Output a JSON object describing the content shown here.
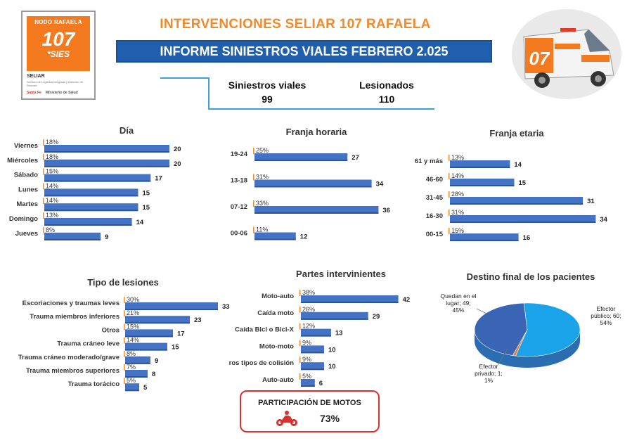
{
  "logo": {
    "nodo": "NODO RAFAELA",
    "number": "107",
    "sies": "*SIES",
    "seliar": "SELIAR",
    "tagline": "Servicio de Logística Integrada y Atención de Rescate",
    "santafe": "Santa Fe",
    "ministerio": "Ministerio de Salud"
  },
  "header": {
    "title": "INTERVENCIONES SELIAR 107 RAFAELA",
    "subtitle": "INFORME SINIESTROS VIALES FEBRERO 2.025"
  },
  "summary": {
    "siniestros_label": "Siniestros viales",
    "siniestros_value": "99",
    "lesionados_label": "Lesionados",
    "lesionados_value": "110"
  },
  "motos": {
    "label": "PARTICIPACIÓN DE MOTOS",
    "value": "73%"
  },
  "colors": {
    "bar": "#4472c4",
    "bar_dark": "#2f5597",
    "orange": "#f08a2c",
    "header_blue": "#1f5fad",
    "pie_blue_light": "#1aa3e8",
    "pie_blue_dark": "#3a64b4",
    "pie_orange": "#e07b39"
  },
  "chart_data": [
    {
      "id": "dia",
      "type": "bar",
      "orientation": "horizontal",
      "title": "Día",
      "categories": [
        "Viernes",
        "Miércoles",
        "Sábado",
        "Lunes",
        "Martes",
        "Domingo",
        "Jueves"
      ],
      "values": [
        20,
        20,
        17,
        15,
        15,
        14,
        9
      ],
      "percent_labels": [
        "18%",
        "18%",
        "15%",
        "14%",
        "14%",
        "13%",
        "8%"
      ]
    },
    {
      "id": "franja_horaria",
      "type": "bar",
      "orientation": "horizontal",
      "title": "Franja horaria",
      "categories": [
        "19-24",
        "13-18",
        "07-12",
        "00-06"
      ],
      "values": [
        27,
        34,
        36,
        12
      ],
      "percent_labels": [
        "25%",
        "31%",
        "33%",
        "11%"
      ]
    },
    {
      "id": "franja_etaria",
      "type": "bar",
      "orientation": "horizontal",
      "title": "Franja etaria",
      "categories": [
        "61 y más",
        "46-60",
        "31-45",
        "16-30",
        "00-15"
      ],
      "values": [
        14,
        15,
        31,
        34,
        16
      ],
      "percent_labels": [
        "13%",
        "14%",
        "28%",
        "31%",
        "15%"
      ]
    },
    {
      "id": "tipo_lesiones",
      "type": "bar",
      "orientation": "horizontal",
      "title": "Tipo de lesiones",
      "categories": [
        "Escoriaciones y traumas leves",
        "Trauma miembros inferiores",
        "Otros",
        "Trauma cráneo leve",
        "Trauma cráneo moderado/grave",
        "Trauma miembros superiores",
        "Trauma torácico"
      ],
      "values": [
        33,
        23,
        17,
        15,
        9,
        8,
        5
      ],
      "percent_labels": [
        "30%",
        "21%",
        "15%",
        "14%",
        "8%",
        "7%",
        "5%"
      ]
    },
    {
      "id": "partes_intervinientes",
      "type": "bar",
      "orientation": "horizontal",
      "title": "Partes intervinientes",
      "categories": [
        "Moto-auto",
        "Caída moto",
        "Caída Bici o  Bici-X",
        "Moto-moto",
        "ros tipos de colisión",
        "Auto-auto"
      ],
      "values": [
        42,
        29,
        13,
        10,
        10,
        6
      ],
      "percent_labels": [
        "38%",
        "26%",
        "12%",
        "9%",
        "9%",
        "5%"
      ]
    },
    {
      "id": "destino_final",
      "type": "pie",
      "title": "Destino final de los pacientes",
      "categories": [
        "Efector público",
        "Efector privado",
        "Quedan en el lugar"
      ],
      "values": [
        60,
        1,
        49
      ],
      "percents": [
        "54%",
        "1%",
        "45%"
      ],
      "labels": [
        "Efector público; 60; 54%",
        "Efector privado; 1; 1%",
        "Quedan en el lugar; 49; 45%"
      ]
    }
  ]
}
